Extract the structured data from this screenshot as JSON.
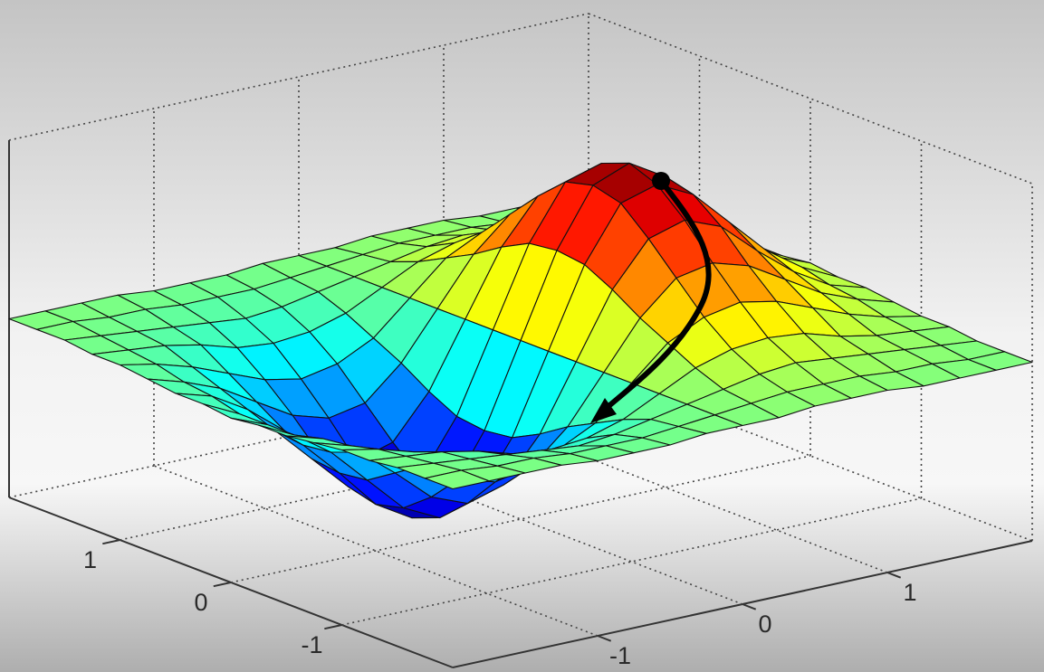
{
  "chart_data": {
    "type": "surface",
    "x": [
      -2,
      -1.75,
      -1.5,
      -1.25,
      -1,
      -0.75,
      -0.5,
      -0.25,
      0,
      0.25,
      0.5,
      0.75,
      1,
      1.25,
      1.5,
      1.75,
      2
    ],
    "y": [
      -2,
      -1.75,
      -1.5,
      -1.25,
      -1,
      -0.75,
      -0.5,
      -0.25,
      0,
      0.25,
      0.5,
      0.75,
      1,
      1.25,
      1.5,
      1.75,
      2
    ],
    "z": [
      [
        0,
        0,
        0,
        0,
        -0.01,
        -0.01,
        -0.01,
        0,
        0,
        0,
        0.01,
        0.01,
        0.01,
        0,
        0,
        0,
        0
      ],
      [
        0,
        0,
        -0.01,
        -0.01,
        -0.02,
        -0.02,
        -0.02,
        -0.01,
        0,
        0.01,
        0.02,
        0.02,
        0.02,
        0.01,
        0.01,
        0,
        0
      ],
      [
        0,
        -0.01,
        -0.02,
        -0.03,
        -0.04,
        -0.05,
        -0.04,
        -0.02,
        0,
        0.02,
        0.04,
        0.05,
        0.04,
        0.03,
        0.02,
        0.01,
        0
      ],
      [
        -0.01,
        -0.02,
        -0.03,
        -0.05,
        -0.08,
        -0.09,
        -0.08,
        -0.05,
        0,
        0.05,
        0.08,
        0.09,
        0.08,
        0.05,
        0.03,
        0.02,
        0.01
      ],
      [
        -0.01,
        -0.03,
        -0.06,
        -0.1,
        -0.14,
        -0.16,
        -0.14,
        -0.09,
        0,
        0.09,
        0.14,
        0.16,
        0.14,
        0.1,
        0.06,
        0.03,
        0.01
      ],
      [
        -0.02,
        -0.05,
        -0.09,
        -0.15,
        -0.21,
        -0.24,
        -0.22,
        -0.13,
        0,
        0.13,
        0.22,
        0.24,
        0.21,
        0.15,
        0.09,
        0.05,
        0.02
      ],
      [
        -0.03,
        -0.06,
        -0.12,
        -0.2,
        -0.29,
        -0.33,
        -0.3,
        -0.18,
        0,
        0.18,
        0.3,
        0.33,
        0.29,
        0.2,
        0.12,
        0.06,
        0.03
      ],
      [
        -0.03,
        -0.08,
        -0.15,
        -0.25,
        -0.35,
        -0.4,
        -0.37,
        -0.22,
        0,
        0.22,
        0.37,
        0.4,
        0.35,
        0.25,
        0.15,
        0.08,
        0.03
      ],
      [
        -0.04,
        -0.08,
        -0.16,
        -0.26,
        -0.37,
        -0.43,
        -0.39,
        -0.23,
        0,
        0.23,
        0.39,
        0.43,
        0.37,
        0.26,
        0.16,
        0.08,
        0.04
      ],
      [
        -0.03,
        -0.08,
        -0.15,
        -0.25,
        -0.35,
        -0.4,
        -0.37,
        -0.22,
        0,
        0.22,
        0.37,
        0.4,
        0.35,
        0.25,
        0.15,
        0.08,
        0.03
      ],
      [
        -0.03,
        -0.06,
        -0.12,
        -0.2,
        -0.29,
        -0.33,
        -0.3,
        -0.18,
        0,
        0.18,
        0.3,
        0.33,
        0.29,
        0.2,
        0.12,
        0.06,
        0.03
      ],
      [
        -0.02,
        -0.05,
        -0.09,
        -0.15,
        -0.21,
        -0.24,
        -0.22,
        -0.13,
        0,
        0.13,
        0.22,
        0.24,
        0.21,
        0.15,
        0.09,
        0.05,
        0.02
      ],
      [
        -0.01,
        -0.03,
        -0.06,
        -0.1,
        -0.14,
        -0.16,
        -0.14,
        -0.09,
        0,
        0.09,
        0.14,
        0.16,
        0.14,
        0.1,
        0.06,
        0.03,
        0.01
      ],
      [
        -0.01,
        -0.02,
        -0.03,
        -0.05,
        -0.08,
        -0.09,
        -0.08,
        -0.05,
        0,
        0.05,
        0.08,
        0.09,
        0.08,
        0.05,
        0.03,
        0.02,
        0.01
      ],
      [
        0,
        -0.01,
        -0.02,
        -0.03,
        -0.04,
        -0.05,
        -0.04,
        -0.02,
        0,
        0.02,
        0.04,
        0.05,
        0.04,
        0.03,
        0.02,
        0.01,
        0
      ],
      [
        0,
        0,
        -0.01,
        -0.01,
        -0.02,
        -0.02,
        -0.02,
        -0.01,
        0,
        0.01,
        0.02,
        0.02,
        0.02,
        0.01,
        0.01,
        0,
        0
      ],
      [
        0,
        0,
        0,
        0,
        -0.01,
        -0.01,
        -0.01,
        0,
        0,
        0,
        0.01,
        0.01,
        0.01,
        0,
        0,
        0,
        0
      ]
    ],
    "xlim": [
      -2,
      2
    ],
    "ylim": [
      -2,
      2
    ],
    "zlim": [
      -0.5,
      0.5
    ],
    "xticks": [
      -1,
      0,
      1
    ],
    "yticks": [
      -1,
      0,
      1
    ],
    "grid": true,
    "colormap": "jet"
  }
}
